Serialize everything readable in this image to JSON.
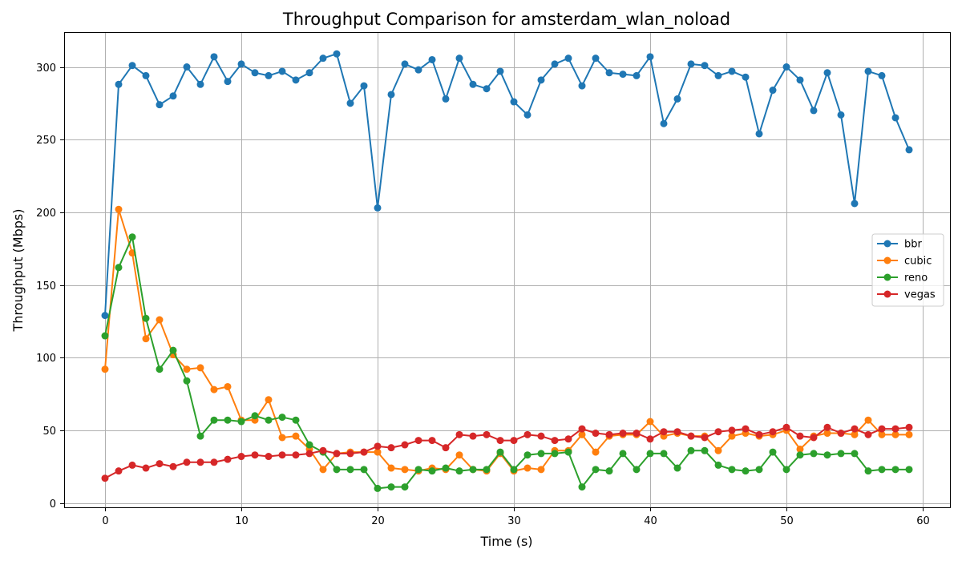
{
  "chart_data": {
    "type": "line",
    "title": "Throughput Comparison for amsterdam_wlan_noload",
    "xlabel": "Time (s)",
    "ylabel": "Throughput (Mbps)",
    "xlim": [
      -3,
      62
    ],
    "ylim": [
      -3,
      324
    ],
    "xticks": [
      0,
      10,
      20,
      30,
      40,
      50,
      60
    ],
    "yticks": [
      0,
      50,
      100,
      150,
      200,
      250,
      300
    ],
    "grid": true,
    "legend_position": "center-right",
    "x": [
      0,
      1,
      2,
      3,
      4,
      5,
      6,
      7,
      8,
      9,
      10,
      11,
      12,
      13,
      14,
      15,
      16,
      17,
      18,
      19,
      20,
      21,
      22,
      23,
      24,
      25,
      26,
      27,
      28,
      29,
      30,
      31,
      32,
      33,
      34,
      35,
      36,
      37,
      38,
      39,
      40,
      41,
      42,
      43,
      44,
      45,
      46,
      47,
      48,
      49,
      50,
      51,
      52,
      53,
      54,
      55,
      56,
      57,
      58,
      59
    ],
    "series": [
      {
        "name": "bbr",
        "color": "#1f77b4",
        "values": [
          129,
          288,
          301,
          294,
          274,
          280,
          300,
          288,
          307,
          290,
          302,
          296,
          294,
          297,
          291,
          296,
          306,
          309,
          275,
          287,
          203,
          281,
          302,
          298,
          305,
          278,
          306,
          288,
          285,
          297,
          276,
          267,
          291,
          302,
          306,
          287,
          306,
          296,
          295,
          294,
          307,
          261,
          278,
          302,
          301,
          294,
          297,
          293,
          254,
          284,
          300,
          291,
          270,
          296,
          267,
          206,
          297,
          294,
          265,
          243
        ]
      },
      {
        "name": "cubic",
        "color": "#ff7f0e",
        "values": [
          92,
          202,
          172,
          113,
          126,
          102,
          92,
          93,
          78,
          80,
          57,
          57,
          71,
          45,
          46,
          37,
          23,
          34,
          35,
          35,
          35,
          24,
          23,
          22,
          24,
          23,
          33,
          23,
          22,
          34,
          22,
          24,
          23,
          36,
          36,
          47,
          35,
          46,
          47,
          47,
          56,
          46,
          48,
          46,
          46,
          36,
          46,
          48,
          46,
          47,
          50,
          37,
          46,
          48,
          48,
          47,
          57,
          47,
          47,
          47
        ]
      },
      {
        "name": "reno",
        "color": "#2ca02c",
        "values": [
          115,
          162,
          183,
          127,
          92,
          105,
          84,
          46,
          57,
          57,
          56,
          60,
          57,
          59,
          57,
          40,
          35,
          23,
          23,
          23,
          10,
          11,
          11,
          23,
          22,
          24,
          22,
          23,
          23,
          35,
          23,
          33,
          34,
          34,
          35,
          11,
          23,
          22,
          34,
          23,
          34,
          34,
          24,
          36,
          36,
          26,
          23,
          22,
          23,
          35,
          23,
          33,
          34,
          33,
          34,
          34,
          22,
          23,
          23,
          23
        ]
      },
      {
        "name": "vegas",
        "color": "#d62728",
        "values": [
          17,
          22,
          26,
          24,
          27,
          25,
          28,
          28,
          28,
          30,
          32,
          33,
          32,
          33,
          33,
          34,
          36,
          34,
          34,
          35,
          39,
          38,
          40,
          43,
          43,
          38,
          47,
          46,
          47,
          43,
          43,
          47,
          46,
          43,
          44,
          51,
          48,
          47,
          48,
          48,
          44,
          49,
          49,
          46,
          45,
          49,
          50,
          51,
          47,
          49,
          52,
          46,
          45,
          52,
          48,
          51,
          47,
          51,
          51,
          52
        ]
      }
    ]
  }
}
